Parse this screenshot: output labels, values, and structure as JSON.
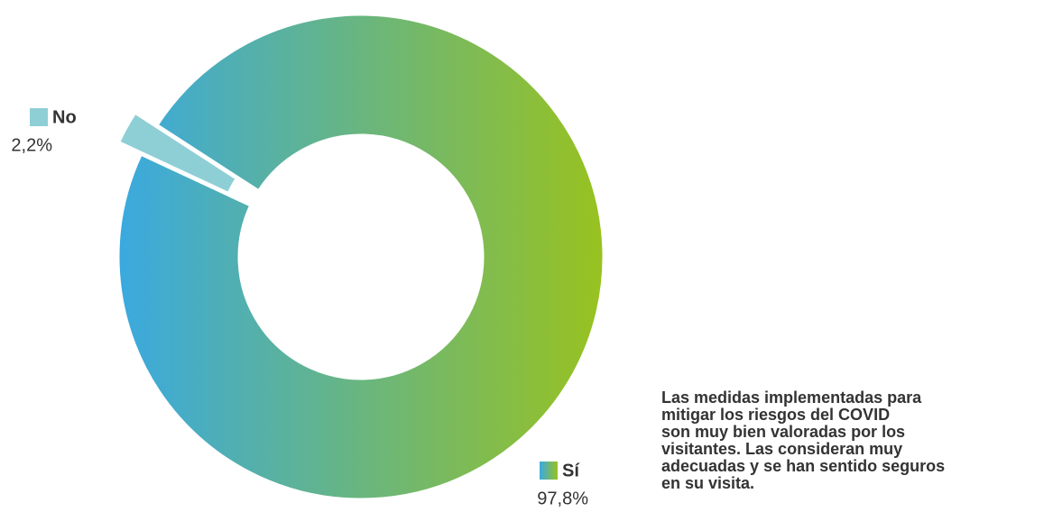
{
  "chart_data": {
    "type": "donut",
    "categories": [
      "No",
      "Sí"
    ],
    "values": [
      2.2,
      97.8
    ],
    "value_labels": [
      "2,2%",
      "97,8%"
    ],
    "colors": [
      "#8ecfd6",
      [
        "#3aa9e0",
        "#98c21f"
      ]
    ],
    "annotation": [
      "Las medidas implementadas para",
      "mitigar los riesgos del COVID",
      "son muy bien valoradas por los",
      "visitantes. Las consideran muy",
      "adecuadas y se han sentido seguros",
      "en su visita."
    ]
  }
}
